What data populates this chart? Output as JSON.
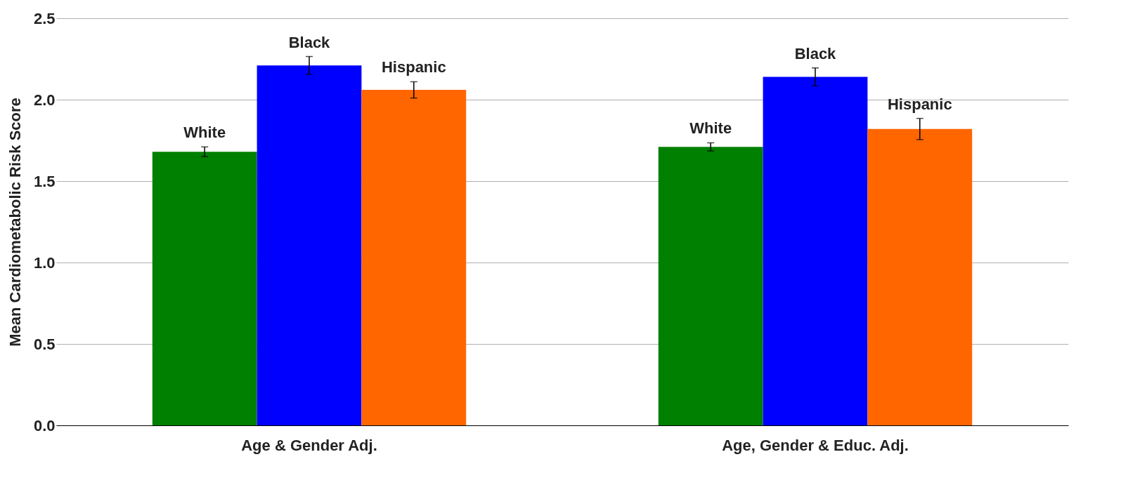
{
  "chart_data": {
    "type": "bar",
    "ylabel": "Mean Cardiometabolic Risk Score",
    "categories": [
      "Age & Gender Adj.",
      "Age, Gender & Educ. Adj."
    ],
    "series": [
      {
        "name": "White",
        "color": "#008000",
        "values": [
          1.68,
          1.71
        ],
        "errors": [
          0.03,
          0.025
        ]
      },
      {
        "name": "Black",
        "color": "#0000ff",
        "values": [
          2.21,
          2.14
        ],
        "errors": [
          0.055,
          0.055
        ]
      },
      {
        "name": "Hispanic",
        "color": "#ff6600",
        "values": [
          2.06,
          1.82
        ],
        "errors": [
          0.05,
          0.065
        ]
      }
    ],
    "ylim": [
      0,
      2.5
    ],
    "yticks": [
      {
        "value": 0,
        "label": "0.0"
      },
      {
        "value": 0.5,
        "label": "0.5"
      },
      {
        "value": 1,
        "label": "1.0"
      },
      {
        "value": 1.5,
        "label": "1.5"
      },
      {
        "value": 2,
        "label": "2.0"
      },
      {
        "value": 2.5,
        "label": "2.5"
      }
    ],
    "grid": "y",
    "legend": false
  }
}
